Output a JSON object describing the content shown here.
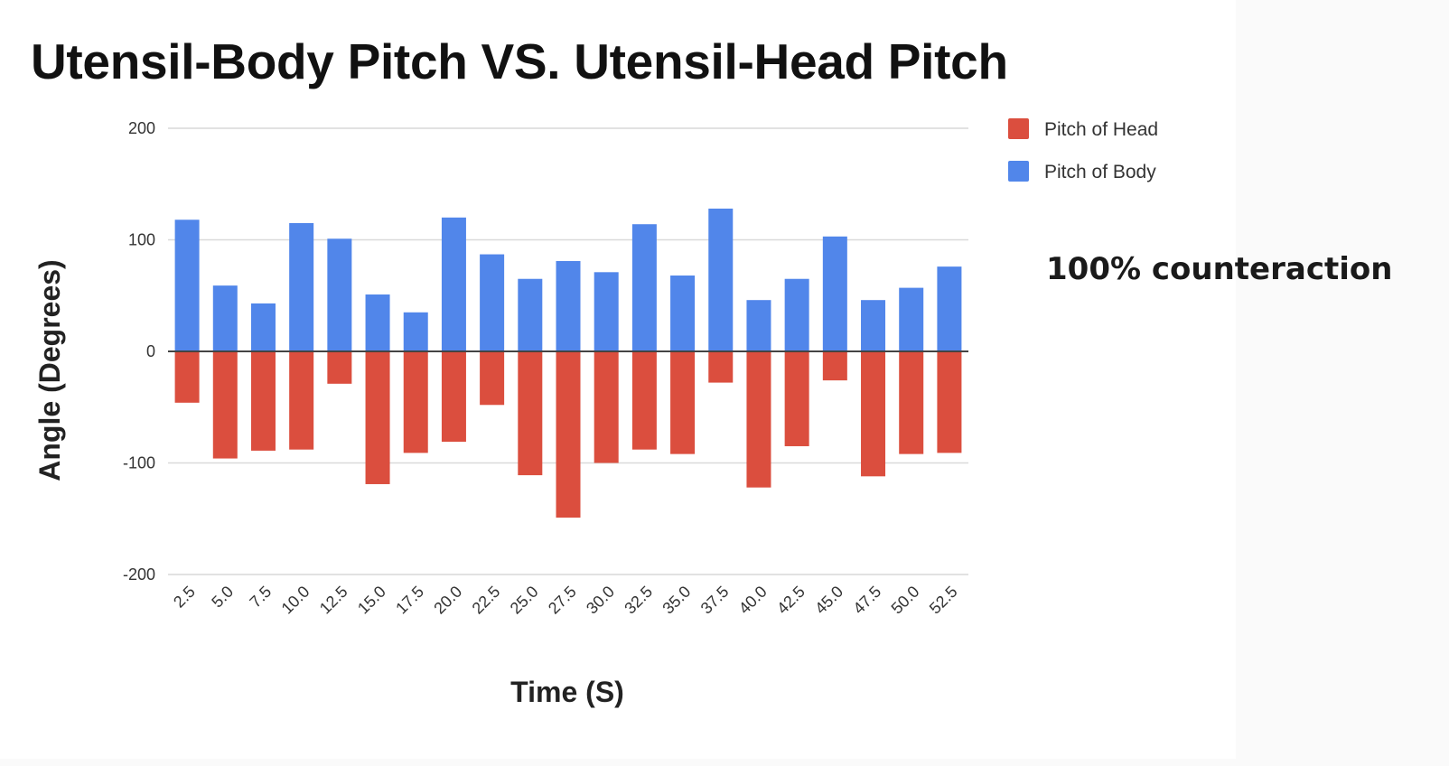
{
  "chart_data": {
    "type": "bar",
    "title": "Utensil-Body Pitch VS. Utensil-Head Pitch",
    "xlabel": "Time (S)",
    "ylabel": "Angle (Degrees)",
    "ylim": [
      -200,
      200
    ],
    "yticks": [
      200,
      100,
      0,
      -100,
      -200
    ],
    "grid": true,
    "legend_position": "top-right",
    "categories": [
      "2.5",
      "5.0",
      "7.5",
      "10.0",
      "12.5",
      "15.0",
      "17.5",
      "20.0",
      "22.5",
      "25.0",
      "27.5",
      "30.0",
      "32.5",
      "35.0",
      "37.5",
      "40.0",
      "42.5",
      "45.0",
      "47.5",
      "50.0",
      "52.5"
    ],
    "series": [
      {
        "name": "Pitch of Head",
        "color": "#db4e3e",
        "values": [
          -46,
          -96,
          -89,
          -88,
          -29,
          -119,
          -91,
          -81,
          -48,
          -111,
          -149,
          -100,
          -88,
          -92,
          -28,
          -122,
          -85,
          -26,
          -112,
          -92,
          -91
        ]
      },
      {
        "name": "Pitch of Body",
        "color": "#5186ea",
        "values": [
          118,
          59,
          43,
          115,
          101,
          51,
          35,
          120,
          87,
          65,
          81,
          71,
          114,
          68,
          128,
          46,
          65,
          103,
          46,
          57,
          76
        ]
      }
    ]
  },
  "annotation": "100% counteraction"
}
